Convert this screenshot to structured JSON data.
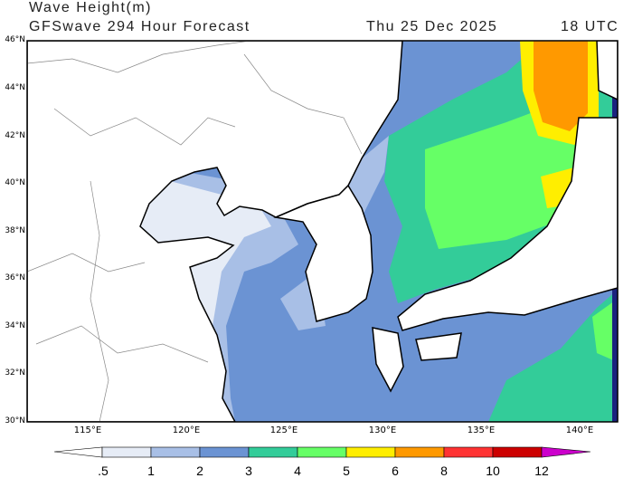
{
  "header": {
    "title": "Wave Height(m)",
    "subtitle": "GFSwave 294 Hour Forecast",
    "date": "Thu 25 Dec 2025",
    "time": "18 UTC"
  },
  "map": {
    "lat_labels": [
      "46°N",
      "44°N",
      "42°N",
      "40°N",
      "38°N",
      "36°N",
      "34°N",
      "32°N",
      "30°N"
    ],
    "lon_labels": [
      "115°E",
      "120°E",
      "125°E",
      "130°E",
      "135°E",
      "140°E"
    ]
  },
  "colorbar": {
    "labels": [
      ".5",
      "1",
      "2",
      "3",
      "4",
      "5",
      "6",
      "8",
      "10",
      "12"
    ],
    "colors": [
      "#ffffff",
      "#e6ecf6",
      "#a8bfe6",
      "#6b93d3",
      "#33cc99",
      "#66ff66",
      "#ffee00",
      "#ff9900",
      "#ff3333",
      "#cc0000",
      "#cc00cc"
    ]
  }
}
